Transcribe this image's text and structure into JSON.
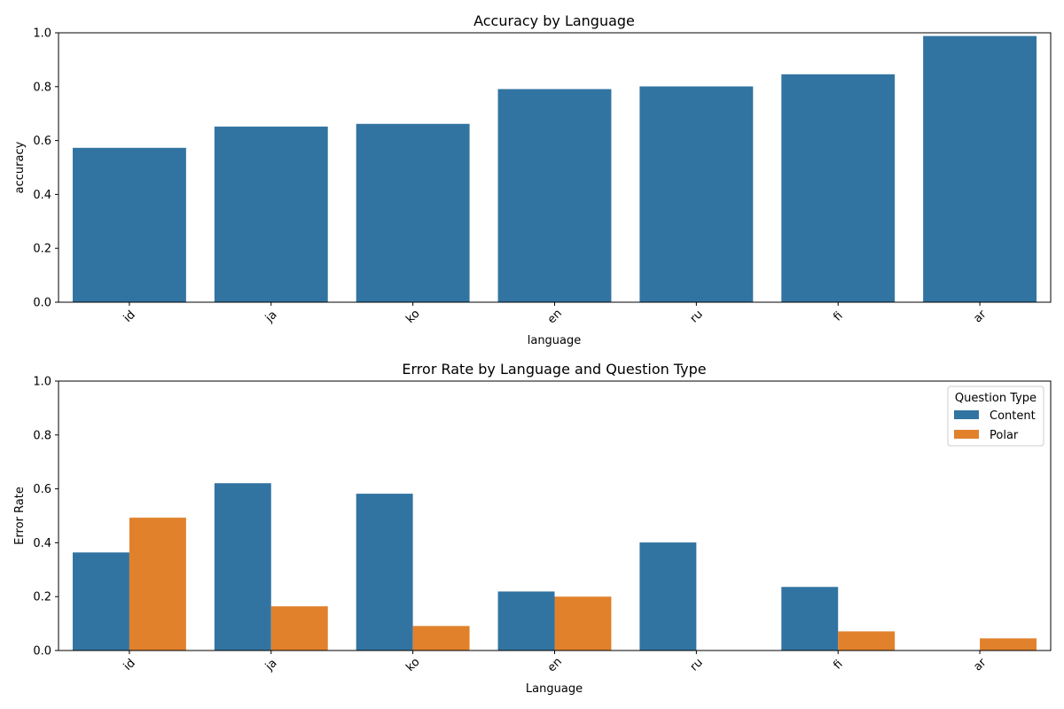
{
  "chart_data": [
    {
      "type": "bar",
      "title": "Accuracy by Language",
      "xlabel": "language",
      "ylabel": "accuracy",
      "ylim": [
        0,
        1
      ],
      "yticks": [
        "0.0",
        "0.2",
        "0.4",
        "0.6",
        "0.8",
        "1.0"
      ],
      "categories": [
        "id",
        "ja",
        "ko",
        "en",
        "ru",
        "fi",
        "ar"
      ],
      "series": [
        {
          "values": [
            0.573,
            0.652,
            0.662,
            0.791,
            0.801,
            0.846,
            0.988
          ],
          "color": "#3274a1"
        }
      ],
      "grid": false,
      "legend": null
    },
    {
      "type": "bar",
      "title": "Error Rate by Language and Question Type",
      "xlabel": "Language",
      "ylabel": "Error Rate",
      "ylim": [
        0,
        1
      ],
      "yticks": [
        "0.0",
        "0.2",
        "0.4",
        "0.6",
        "0.8",
        "1.0"
      ],
      "categories": [
        "id",
        "ja",
        "ko",
        "en",
        "ru",
        "fi",
        "ar"
      ],
      "series": [
        {
          "name": "Content",
          "values": [
            0.364,
            0.621,
            0.582,
            0.219,
            0.401,
            0.236,
            0.0
          ],
          "color": "#3274a1"
        },
        {
          "name": "Polar",
          "values": [
            0.493,
            0.164,
            0.091,
            0.2,
            0.0,
            0.071,
            0.045
          ],
          "color": "#e1812c"
        }
      ],
      "grid": false,
      "legend": {
        "title": "Question Type",
        "placement": "top-right"
      }
    }
  ]
}
